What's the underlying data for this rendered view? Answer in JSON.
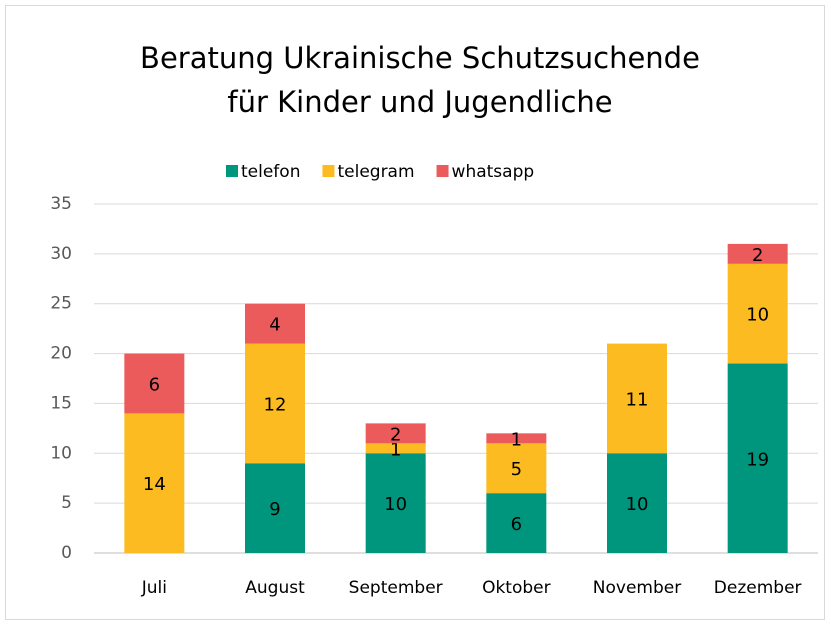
{
  "chart_data": {
    "type": "stacked-bar",
    "title": [
      "Beratung Ukrainische Schutzsuchende",
      "für Kinder und Jugendliche"
    ],
    "categories": [
      "Juli",
      "August",
      "September",
      "Oktober",
      "November",
      "Dezember"
    ],
    "series": [
      {
        "name": "telefon",
        "color": "#00967d",
        "values": [
          null,
          9,
          10,
          6,
          10,
          19
        ]
      },
      {
        "name": "telegram",
        "color": "#fbbb21",
        "values": [
          14,
          12,
          1,
          5,
          11,
          10
        ]
      },
      {
        "name": "whatsapp",
        "color": "#eb5b5b",
        "values": [
          6,
          4,
          2,
          1,
          null,
          2
        ]
      }
    ],
    "ylim": [
      0,
      35
    ],
    "yticks": [
      0,
      5,
      10,
      15,
      20,
      25,
      30,
      35
    ],
    "grid": true,
    "legend": "top"
  }
}
